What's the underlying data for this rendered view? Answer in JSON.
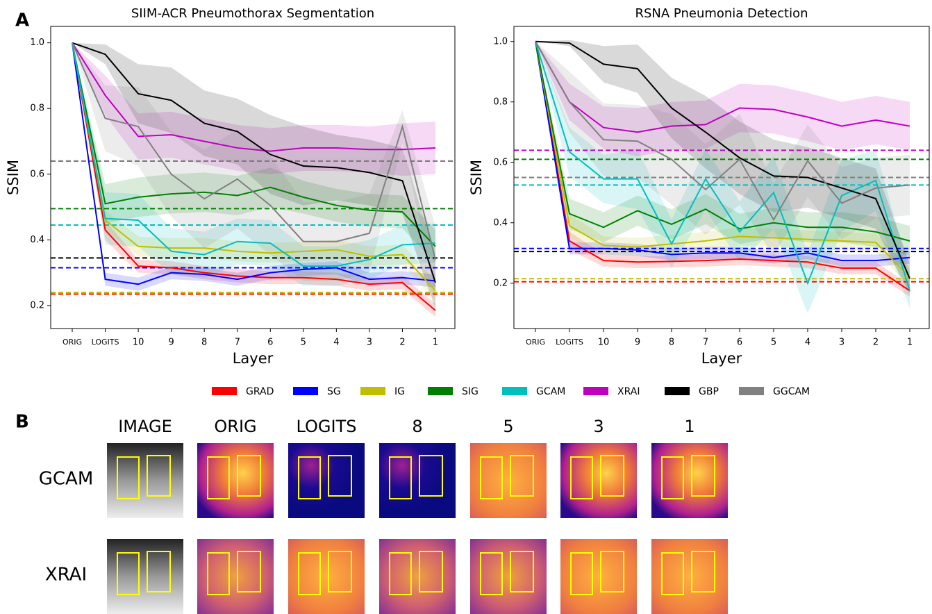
{
  "panel_labels": [
    "A",
    "B"
  ],
  "chart_data": [
    {
      "type": "line",
      "title": "SIIM-ACR Pneumothorax Segmentation",
      "x_label": "Layer",
      "y_label": "SSIM",
      "categories": [
        "ORIG",
        "LOGITS",
        "10",
        "9",
        "8",
        "7",
        "6",
        "5",
        "4",
        "3",
        "2",
        "1"
      ],
      "ylim": [
        0.13,
        1.05
      ],
      "yticks": [
        0.2,
        0.4,
        0.6,
        0.8,
        {
          "value": 1,
          "label": "1.0"
        }
      ],
      "series": [
        {
          "name": "GRAD",
          "color": "#ff0000",
          "values": [
            1.0,
            0.43,
            0.32,
            0.315,
            0.3,
            0.29,
            0.285,
            0.285,
            0.28,
            0.265,
            0.27,
            0.185
          ],
          "errors": [
            0,
            0.03,
            0.02,
            0.02,
            0.02,
            0.02,
            0.02,
            0.02,
            0.02,
            0.02,
            0.02,
            0.02
          ],
          "baseline": 0.235
        },
        {
          "name": "SG",
          "color": "#0000ff",
          "values": [
            1.0,
            0.28,
            0.265,
            0.3,
            0.295,
            0.28,
            0.3,
            0.31,
            0.315,
            0.28,
            0.285,
            0.275
          ],
          "errors": [
            0,
            0.02,
            0.02,
            0.02,
            0.02,
            0.02,
            0.02,
            0.02,
            0.02,
            0.02,
            0.02,
            0.02
          ],
          "baseline": 0.315
        },
        {
          "name": "IG",
          "color": "#bfbf00",
          "values": [
            1.0,
            0.46,
            0.38,
            0.375,
            0.375,
            0.365,
            0.36,
            0.365,
            0.37,
            0.35,
            0.355,
            0.245
          ],
          "errors": [
            0,
            0.03,
            0.03,
            0.03,
            0.03,
            0.03,
            0.03,
            0.03,
            0.03,
            0.03,
            0.03,
            0.03
          ],
          "baseline": 0.24
        },
        {
          "name": "SIG",
          "color": "#008000",
          "values": [
            1.0,
            0.51,
            0.53,
            0.54,
            0.545,
            0.535,
            0.56,
            0.53,
            0.505,
            0.49,
            0.485,
            0.38
          ],
          "errors": [
            0,
            0.06,
            0.06,
            0.06,
            0.06,
            0.06,
            0.06,
            0.05,
            0.05,
            0.05,
            0.05,
            0.05
          ],
          "baseline": 0.495
        },
        {
          "name": "GCAM",
          "color": "#00bfbf",
          "values": [
            1.0,
            0.465,
            0.46,
            0.365,
            0.355,
            0.395,
            0.39,
            0.32,
            0.32,
            0.34,
            0.385,
            0.39
          ],
          "errors": [
            0,
            0.08,
            0.08,
            0.07,
            0.07,
            0.07,
            0.07,
            0.06,
            0.06,
            0.06,
            0.06,
            0.06
          ],
          "baseline": 0.445
        },
        {
          "name": "XRAI",
          "color": "#bf00bf",
          "values": [
            1.0,
            0.84,
            0.715,
            0.72,
            0.7,
            0.68,
            0.67,
            0.68,
            0.68,
            0.675,
            0.675,
            0.68
          ],
          "errors": [
            0,
            0.06,
            0.07,
            0.07,
            0.07,
            0.07,
            0.07,
            0.07,
            0.07,
            0.07,
            0.08,
            0.08
          ],
          "baseline": 0.64
        },
        {
          "name": "GBP",
          "color": "#000000",
          "values": [
            1.0,
            0.965,
            0.845,
            0.825,
            0.755,
            0.73,
            0.66,
            0.625,
            0.62,
            0.605,
            0.58,
            0.27
          ],
          "errors": [
            0,
            0.03,
            0.09,
            0.1,
            0.1,
            0.1,
            0.12,
            0.12,
            0.1,
            0.1,
            0.1,
            0.08
          ],
          "baseline": 0.345
        },
        {
          "name": "GGCAM",
          "color": "#808080",
          "values": [
            1.0,
            0.77,
            0.745,
            0.6,
            0.525,
            0.585,
            0.505,
            0.395,
            0.395,
            0.42,
            0.745,
            0.34
          ],
          "errors": [
            0,
            0.1,
            0.12,
            0.13,
            0.15,
            0.15,
            0.15,
            0.12,
            0.12,
            0.12,
            0.05,
            0.1
          ],
          "baseline": 0.64
        }
      ]
    },
    {
      "type": "line",
      "title": "RSNA Pneumonia Detection",
      "x_label": "Layer",
      "y_label": "SSIM",
      "categories": [
        "ORIG",
        "LOGITS",
        "10",
        "9",
        "8",
        "7",
        "6",
        "5",
        "4",
        "3",
        "2",
        "1"
      ],
      "ylim": [
        0.05,
        1.05
      ],
      "yticks": [
        0.2,
        0.4,
        0.6,
        0.8,
        {
          "value": 1,
          "label": "1.0"
        }
      ],
      "series": [
        {
          "name": "GRAD",
          "color": "#ff0000",
          "values": [
            1.0,
            0.34,
            0.275,
            0.27,
            0.272,
            0.275,
            0.28,
            0.275,
            0.27,
            0.25,
            0.25,
            0.175
          ],
          "errors": [
            0,
            0.03,
            0.02,
            0.02,
            0.02,
            0.02,
            0.02,
            0.02,
            0.02,
            0.02,
            0.02,
            0.02
          ],
          "baseline": 0.205
        },
        {
          "name": "SG",
          "color": "#0000ff",
          "values": [
            1.0,
            0.315,
            0.315,
            0.31,
            0.295,
            0.3,
            0.3,
            0.285,
            0.3,
            0.275,
            0.275,
            0.285
          ],
          "errors": [
            0,
            0.02,
            0.02,
            0.02,
            0.02,
            0.02,
            0.02,
            0.02,
            0.02,
            0.02,
            0.02,
            0.02
          ],
          "baseline": 0.315
        },
        {
          "name": "IG",
          "color": "#bfbf00",
          "values": [
            1.0,
            0.39,
            0.325,
            0.32,
            0.33,
            0.34,
            0.355,
            0.35,
            0.345,
            0.34,
            0.335,
            0.22
          ],
          "errors": [
            0,
            0.04,
            0.03,
            0.03,
            0.03,
            0.03,
            0.03,
            0.03,
            0.03,
            0.03,
            0.03,
            0.03
          ],
          "baseline": 0.215
        },
        {
          "name": "SIG",
          "color": "#008000",
          "values": [
            1.0,
            0.43,
            0.385,
            0.44,
            0.395,
            0.445,
            0.38,
            0.4,
            0.385,
            0.385,
            0.37,
            0.34
          ],
          "errors": [
            0,
            0.05,
            0.05,
            0.05,
            0.05,
            0.05,
            0.05,
            0.05,
            0.05,
            0.05,
            0.05,
            0.05
          ],
          "baseline": 0.61
        },
        {
          "name": "GCAM",
          "color": "#00bfbf",
          "values": [
            1.0,
            0.635,
            0.545,
            0.545,
            0.33,
            0.545,
            0.37,
            0.5,
            0.2,
            0.49,
            0.54,
            0.175
          ],
          "errors": [
            0,
            0.08,
            0.08,
            0.1,
            0.08,
            0.1,
            0.1,
            0.12,
            0.1,
            0.12,
            0.1,
            0.06
          ],
          "baseline": 0.525
        },
        {
          "name": "XRAI",
          "color": "#bf00bf",
          "values": [
            1.0,
            0.8,
            0.715,
            0.7,
            0.72,
            0.725,
            0.78,
            0.775,
            0.75,
            0.72,
            0.74,
            0.72
          ],
          "errors": [
            0,
            0.06,
            0.07,
            0.08,
            0.08,
            0.08,
            0.08,
            0.08,
            0.08,
            0.08,
            0.08,
            0.08
          ],
          "baseline": 0.64
        },
        {
          "name": "GBP",
          "color": "#000000",
          "values": [
            1.0,
            0.995,
            0.925,
            0.91,
            0.78,
            0.7,
            0.615,
            0.555,
            0.55,
            0.515,
            0.48,
            0.215
          ],
          "errors": [
            0,
            0.01,
            0.06,
            0.08,
            0.1,
            0.12,
            0.12,
            0.12,
            0.1,
            0.1,
            0.1,
            0.05
          ],
          "baseline": 0.305
        },
        {
          "name": "GGCAM",
          "color": "#808080",
          "values": [
            1.0,
            0.8,
            0.675,
            0.67,
            0.61,
            0.51,
            0.61,
            0.41,
            0.605,
            0.465,
            0.515,
            0.525
          ],
          "errors": [
            0,
            0.1,
            0.12,
            0.12,
            0.15,
            0.15,
            0.15,
            0.12,
            0.12,
            0.12,
            0.1,
            0.1
          ],
          "baseline": 0.55
        }
      ]
    }
  ],
  "panel_b": {
    "columns": [
      "IMAGE",
      "ORIG",
      "LOGITS",
      "8",
      "5",
      "3",
      "1"
    ],
    "rows": [
      "GCAM",
      "XRAI"
    ]
  }
}
